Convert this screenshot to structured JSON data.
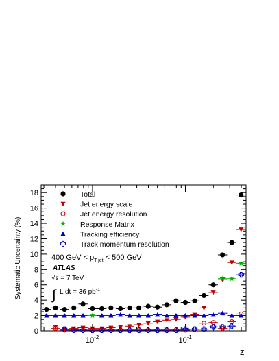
{
  "chart_data": {
    "type": "scatter",
    "title": "",
    "xlabel": "z",
    "ylabel": "Systematic Uncertainty (%)",
    "xscale": "log",
    "xlim": [
      0.0028,
      0.45
    ],
    "ylim": [
      0,
      19
    ],
    "y_ticks": [
      "0",
      "2",
      "4",
      "6",
      "8",
      "10",
      "12",
      "14",
      "16",
      "18"
    ],
    "x_ticks": [
      {
        "base": "10",
        "exp": "-2",
        "value": 0.01
      },
      {
        "base": "10",
        "exp": "-1",
        "value": 0.1
      }
    ],
    "grid": false,
    "legend_position": "top-left",
    "annotations": {
      "pt_range_left": "400 GeV < p",
      "pt_sub": "T jet",
      "pt_range_right": " < 500 GeV",
      "experiment": "ATLAS",
      "energy_sqrt": "√s = 7 TeV",
      "lumi_integral": "∫",
      "lumi_text": "L dt = 36 pb",
      "lumi_sup": "-1"
    },
    "series": [
      {
        "name": "Total",
        "marker": "filled-circle",
        "color": "#000000",
        "x": [
          0.0032,
          0.004,
          0.005,
          0.0063,
          0.0079,
          0.01,
          0.0126,
          0.0158,
          0.02,
          0.0251,
          0.0316,
          0.0398,
          0.0501,
          0.0631,
          0.0794,
          0.1,
          0.1259,
          0.1585,
          0.1995,
          0.2512,
          0.3162,
          0.3981
        ],
        "values": [
          2.8,
          3.0,
          2.8,
          3.0,
          3.5,
          2.9,
          2.9,
          3.0,
          2.9,
          3.0,
          3.0,
          3.2,
          3.1,
          3.4,
          3.9,
          3.7,
          3.9,
          4.6,
          6.0,
          9.9,
          11.5,
          17.7
        ]
      },
      {
        "name": "Jet energy scale",
        "marker": "filled-triangle-down",
        "color": "#c00000",
        "x": [
          0.004,
          0.005,
          0.0063,
          0.0079,
          0.01,
          0.0126,
          0.0158,
          0.02,
          0.0251,
          0.0316,
          0.0398,
          0.0501,
          0.0631,
          0.0794,
          0.1,
          0.1259,
          0.1585,
          0.1995,
          0.2512,
          0.3162,
          0.3981
        ],
        "values": [
          0.5,
          0.2,
          0.3,
          0.4,
          0.3,
          0.3,
          0.4,
          0.5,
          0.6,
          0.8,
          1.0,
          1.2,
          1.4,
          1.5,
          1.8,
          2.1,
          3.0,
          5.0,
          6.7,
          8.9,
          13.2
        ]
      },
      {
        "name": "Jet energy resolution",
        "marker": "open-circle",
        "color": "#cc0000",
        "x": [
          0.004,
          0.005,
          0.0063,
          0.0079,
          0.01,
          0.0126,
          0.0158,
          0.02,
          0.0251,
          0.0316,
          0.0398,
          0.0501,
          0.0631,
          0.0794,
          0.1,
          0.1259,
          0.1585,
          0.1995,
          0.2512,
          0.3162,
          0.3981
        ],
        "values": [
          0.3,
          0.1,
          0.1,
          0.1,
          0.1,
          0.1,
          0.1,
          0.1,
          0.1,
          0.1,
          0.1,
          0.1,
          0.1,
          0.1,
          0.1,
          0.2,
          1.0,
          1.1,
          0.3,
          1.2,
          2.2
        ]
      },
      {
        "name": "Response Matrix",
        "marker": "star",
        "color": "#00b000",
        "x": [
          0.01,
          0.2512,
          0.3162,
          0.3981
        ],
        "values": [
          2.0,
          6.8,
          6.8,
          8.8
        ]
      },
      {
        "name": "Tracking efficiency",
        "marker": "filled-triangle-up",
        "color": "#0000c0",
        "x": [
          0.0032,
          0.004,
          0.005,
          0.0063,
          0.0079,
          0.0126,
          0.0158,
          0.02,
          0.0251,
          0.0316,
          0.0398,
          0.0501,
          0.0631,
          0.0794,
          0.1,
          0.1259,
          0.1585,
          0.1995,
          0.2512,
          0.3162,
          0.3981
        ],
        "values": [
          2.0,
          2.0,
          2.0,
          2.0,
          2.0,
          2.0,
          2.0,
          2.1,
          2.0,
          2.0,
          2.0,
          2.1,
          2.0,
          2.0,
          2.0,
          2.0,
          2.0,
          2.1,
          2.3,
          2.0,
          2.0
        ]
      },
      {
        "name": "Track momentum resolution",
        "marker": "open-cross",
        "color": "#0000c0",
        "x": [
          0.005,
          0.0063,
          0.0079,
          0.01,
          0.0126,
          0.0158,
          0.02,
          0.0251,
          0.0316,
          0.0398,
          0.0501,
          0.0631,
          0.0794,
          0.1,
          0.1259,
          0.1585,
          0.1995,
          0.2512,
          0.3162,
          0.3981
        ],
        "values": [
          0.2,
          0.1,
          0.1,
          0.1,
          0.1,
          0.1,
          0.1,
          0.1,
          0.1,
          0.1,
          0.1,
          0.1,
          0.1,
          0.2,
          0.2,
          0.2,
          0.5,
          0.5,
          0.6,
          7.3
        ]
      }
    ]
  }
}
